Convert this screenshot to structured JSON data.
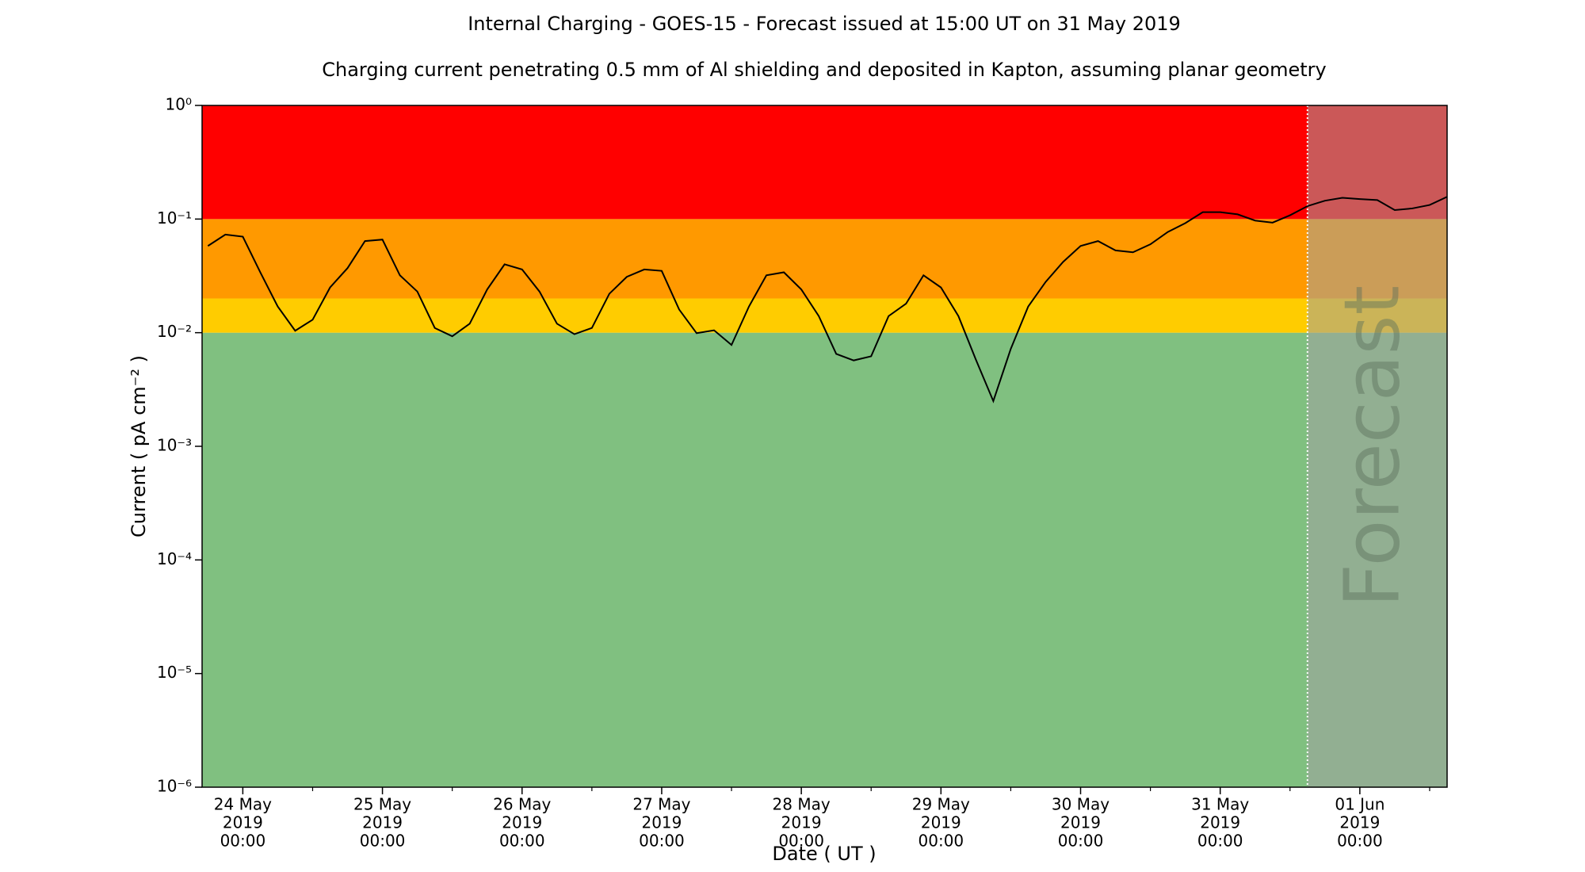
{
  "chart_data": {
    "type": "line",
    "title": "Internal Charging - GOES-15 - Forecast issued at 15:00 UT on 31 May 2019",
    "subtitle": "Charging current penetrating 0.5 mm of Al shielding and deposited in Kapton, assuming planar geometry",
    "x_label": "Date ( UT )",
    "y_label": "Current ( pA cm⁻² )",
    "y_scale": "log",
    "ylim": [
      1e-06,
      1
    ],
    "yticks": [
      {
        "value": 1e-06,
        "label": "10⁻⁶"
      },
      {
        "value": 1e-05,
        "label": "10⁻⁵"
      },
      {
        "value": 0.0001,
        "label": "10⁻⁴"
      },
      {
        "value": 0.001,
        "label": "10⁻³"
      },
      {
        "value": 0.01,
        "label": "10⁻²"
      },
      {
        "value": 0.1,
        "label": "10⁻¹"
      },
      {
        "value": 1,
        "label": "10⁰"
      }
    ],
    "xlim": [
      "2019-05-23 17:00",
      "2019-06-01 15:00"
    ],
    "xticks": [
      {
        "value": "2019-05-24 00:00",
        "label": [
          "24 May",
          "2019",
          "00:00"
        ]
      },
      {
        "value": "2019-05-25 00:00",
        "label": [
          "25 May",
          "2019",
          "00:00"
        ]
      },
      {
        "value": "2019-05-26 00:00",
        "label": [
          "26 May",
          "2019",
          "00:00"
        ]
      },
      {
        "value": "2019-05-27 00:00",
        "label": [
          "27 May",
          "2019",
          "00:00"
        ]
      },
      {
        "value": "2019-05-28 00:00",
        "label": [
          "28 May",
          "2019",
          "00:00"
        ]
      },
      {
        "value": "2019-05-29 00:00",
        "label": [
          "29 May",
          "2019",
          "00:00"
        ]
      },
      {
        "value": "2019-05-30 00:00",
        "label": [
          "30 May",
          "2019",
          "00:00"
        ]
      },
      {
        "value": "2019-05-31 00:00",
        "label": [
          "31 May",
          "2019",
          "00:00"
        ]
      },
      {
        "value": "2019-06-01 00:00",
        "label": [
          "01 Jun",
          "2019",
          "00:00"
        ]
      }
    ],
    "xminorticks": [
      "2019-05-24 12:00",
      "2019-05-25 12:00",
      "2019-05-26 12:00",
      "2019-05-27 12:00",
      "2019-05-28 12:00",
      "2019-05-29 12:00",
      "2019-05-30 12:00",
      "2019-05-31 12:00",
      "2019-06-01 12:00"
    ],
    "bands": [
      {
        "from": 1e-06,
        "to": 0.01,
        "color": "#80c080"
      },
      {
        "from": 0.01,
        "to": 0.02,
        "color": "#ffcc00"
      },
      {
        "from": 0.02,
        "to": 0.1,
        "color": "#ff9900"
      },
      {
        "from": 0.1,
        "to": 1,
        "color": "#ff0000"
      }
    ],
    "forecast": {
      "start": "2019-05-31 15:00",
      "label": "Forecast",
      "color": "rgba(160,160,160,0.55)"
    },
    "x": [
      "2019-05-23 18:00",
      "2019-05-23 21:00",
      "2019-05-24 00:00",
      "2019-05-24 03:00",
      "2019-05-24 06:00",
      "2019-05-24 09:00",
      "2019-05-24 12:00",
      "2019-05-24 15:00",
      "2019-05-24 18:00",
      "2019-05-24 21:00",
      "2019-05-25 00:00",
      "2019-05-25 03:00",
      "2019-05-25 06:00",
      "2019-05-25 09:00",
      "2019-05-25 12:00",
      "2019-05-25 15:00",
      "2019-05-25 18:00",
      "2019-05-25 21:00",
      "2019-05-26 00:00",
      "2019-05-26 03:00",
      "2019-05-26 06:00",
      "2019-05-26 09:00",
      "2019-05-26 12:00",
      "2019-05-26 15:00",
      "2019-05-26 18:00",
      "2019-05-26 21:00",
      "2019-05-27 00:00",
      "2019-05-27 03:00",
      "2019-05-27 06:00",
      "2019-05-27 09:00",
      "2019-05-27 12:00",
      "2019-05-27 15:00",
      "2019-05-27 18:00",
      "2019-05-27 21:00",
      "2019-05-28 00:00",
      "2019-05-28 03:00",
      "2019-05-28 06:00",
      "2019-05-28 09:00",
      "2019-05-28 12:00",
      "2019-05-28 15:00",
      "2019-05-28 18:00",
      "2019-05-28 21:00",
      "2019-05-29 00:00",
      "2019-05-29 03:00",
      "2019-05-29 06:00",
      "2019-05-29 09:00",
      "2019-05-29 12:00",
      "2019-05-29 15:00",
      "2019-05-29 18:00",
      "2019-05-29 21:00",
      "2019-05-30 00:00",
      "2019-05-30 03:00",
      "2019-05-30 06:00",
      "2019-05-30 09:00",
      "2019-05-30 12:00",
      "2019-05-30 15:00",
      "2019-05-30 18:00",
      "2019-05-30 21:00",
      "2019-05-31 00:00",
      "2019-05-31 03:00",
      "2019-05-31 06:00",
      "2019-05-31 09:00",
      "2019-05-31 12:00",
      "2019-05-31 15:00",
      "2019-05-31 18:00",
      "2019-05-31 21:00",
      "2019-06-01 00:00",
      "2019-06-01 03:00",
      "2019-06-01 06:00",
      "2019-06-01 09:00",
      "2019-06-01 12:00",
      "2019-06-01 15:00"
    ],
    "series": [
      {
        "color": "#000000",
        "values": [
          0.058,
          0.073,
          0.07,
          0.034,
          0.017,
          0.0104,
          0.013,
          0.025,
          0.037,
          0.064,
          0.066,
          0.032,
          0.023,
          0.011,
          0.0093,
          0.012,
          0.024,
          0.04,
          0.036,
          0.023,
          0.012,
          0.0097,
          0.011,
          0.022,
          0.031,
          0.036,
          0.035,
          0.016,
          0.0099,
          0.0105,
          0.0078,
          0.017,
          0.032,
          0.034,
          0.024,
          0.014,
          0.0065,
          0.0057,
          0.0062,
          0.014,
          0.018,
          0.032,
          0.025,
          0.014,
          0.0058,
          0.0025,
          0.0072,
          0.017,
          0.028,
          0.042,
          0.058,
          0.064,
          0.053,
          0.051,
          0.06,
          0.077,
          0.092,
          0.115,
          0.115,
          0.11,
          0.097,
          0.093,
          0.108,
          0.13,
          0.145,
          0.154,
          0.15,
          0.147,
          0.12,
          0.124,
          0.133,
          0.157
        ]
      }
    ]
  }
}
